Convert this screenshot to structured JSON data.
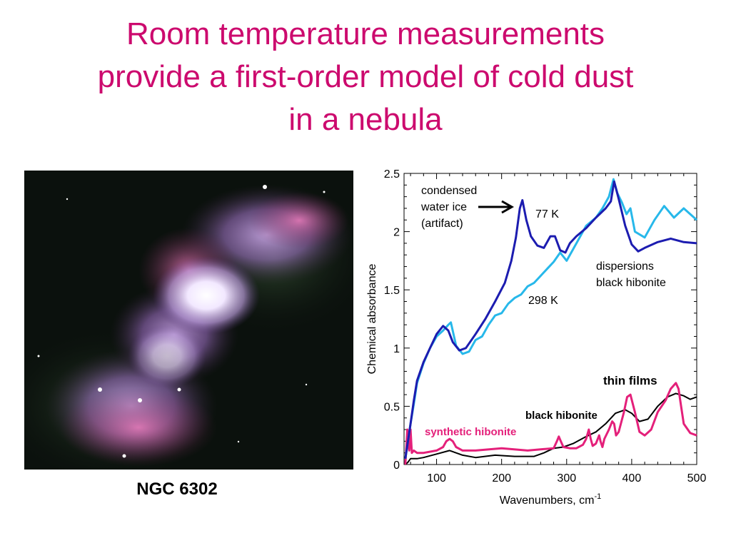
{
  "title": {
    "lines": [
      "Room temperature measurements",
      "provide a first-order model of cold dust",
      "in a nebula"
    ]
  },
  "image": {
    "caption": "NGC 6302"
  },
  "colors": {
    "title": "#cc0a6e",
    "k77": "#1c1cb0",
    "k298": "#27b8ea",
    "synthetic": "#e4207a",
    "black": "#000000"
  },
  "chart_data": {
    "type": "line",
    "xlabel": "Wavenumbers, cm",
    "xlabel_sup": "-1",
    "ylabel": "Chemical absorbance",
    "xlim": [
      50,
      500
    ],
    "ylim": [
      0,
      2.5
    ],
    "xticks": [
      100,
      200,
      300,
      400,
      500
    ],
    "yticks": [
      0,
      0.5,
      1,
      1.5,
      2,
      2.5
    ],
    "grid": false,
    "series": [
      {
        "name": "77 K",
        "color": "#1c1cb0",
        "x": [
          52,
          56,
          60,
          65,
          70,
          80,
          90,
          100,
          110,
          118,
          125,
          135,
          145,
          160,
          175,
          190,
          205,
          215,
          222,
          228,
          232,
          238,
          245,
          255,
          265,
          275,
          282,
          290,
          298,
          305,
          315,
          330,
          345,
          360,
          368,
          373,
          380,
          390,
          400,
          410,
          420,
          440,
          460,
          480,
          500
        ],
        "y": [
          0.05,
          0.2,
          0.35,
          0.55,
          0.72,
          0.88,
          1.0,
          1.12,
          1.19,
          1.15,
          1.05,
          0.98,
          1.0,
          1.12,
          1.25,
          1.4,
          1.56,
          1.75,
          1.95,
          2.2,
          2.27,
          2.1,
          1.96,
          1.88,
          1.86,
          1.96,
          1.96,
          1.84,
          1.82,
          1.9,
          1.96,
          2.03,
          2.12,
          2.2,
          2.26,
          2.43,
          2.28,
          2.05,
          1.89,
          1.83,
          1.86,
          1.91,
          1.94,
          1.91,
          1.9
        ]
      },
      {
        "name": "298 K",
        "color": "#27b8ea",
        "x": [
          52,
          56,
          60,
          65,
          70,
          80,
          90,
          100,
          110,
          118,
          122,
          130,
          140,
          150,
          160,
          170,
          180,
          190,
          200,
          210,
          220,
          230,
          240,
          250,
          260,
          270,
          280,
          290,
          300,
          310,
          320,
          330,
          345,
          355,
          365,
          372,
          378,
          385,
          392,
          398,
          405,
          420,
          435,
          450,
          465,
          480,
          500
        ],
        "y": [
          0.05,
          0.2,
          0.35,
          0.52,
          0.7,
          0.87,
          1.0,
          1.1,
          1.15,
          1.2,
          1.22,
          1.02,
          0.95,
          0.97,
          1.07,
          1.1,
          1.2,
          1.28,
          1.3,
          1.38,
          1.43,
          1.46,
          1.53,
          1.56,
          1.62,
          1.68,
          1.74,
          1.82,
          1.75,
          1.85,
          1.95,
          2.05,
          2.12,
          2.2,
          2.3,
          2.45,
          2.33,
          2.25,
          2.15,
          2.2,
          2.0,
          1.95,
          2.1,
          2.22,
          2.12,
          2.2,
          2.1
        ]
      },
      {
        "name": "synthetic hibonite",
        "color": "#e4207a",
        "x": [
          52,
          55,
          58,
          60,
          62,
          65,
          70,
          80,
          100,
          110,
          115,
          120,
          125,
          130,
          140,
          160,
          200,
          240,
          260,
          280,
          285,
          288,
          291,
          295,
          305,
          315,
          325,
          330,
          334,
          337,
          340,
          345,
          350,
          352,
          355,
          358,
          365,
          370,
          373,
          376,
          380,
          388,
          393,
          398,
          405,
          412,
          420,
          430,
          440,
          452,
          460,
          468,
          472,
          476,
          480,
          490,
          500
        ],
        "y": [
          0.0,
          0.3,
          0.12,
          0.3,
          0.1,
          0.12,
          0.1,
          0.1,
          0.12,
          0.15,
          0.2,
          0.22,
          0.2,
          0.15,
          0.12,
          0.12,
          0.14,
          0.12,
          0.13,
          0.14,
          0.2,
          0.24,
          0.2,
          0.15,
          0.14,
          0.14,
          0.17,
          0.22,
          0.3,
          0.22,
          0.16,
          0.18,
          0.25,
          0.2,
          0.15,
          0.22,
          0.3,
          0.37,
          0.35,
          0.25,
          0.28,
          0.45,
          0.58,
          0.6,
          0.45,
          0.28,
          0.25,
          0.3,
          0.45,
          0.55,
          0.65,
          0.7,
          0.65,
          0.5,
          0.35,
          0.27,
          0.25
        ]
      },
      {
        "name": "black hibonite",
        "color": "#000000",
        "x": [
          52,
          56,
          60,
          70,
          80,
          100,
          120,
          140,
          160,
          190,
          220,
          250,
          265,
          280,
          295,
          310,
          330,
          345,
          360,
          375,
          390,
          400,
          412,
          425,
          440,
          455,
          468,
          480,
          490,
          500
        ],
        "y": [
          0.0,
          0.02,
          0.05,
          0.05,
          0.06,
          0.09,
          0.12,
          0.08,
          0.06,
          0.08,
          0.07,
          0.07,
          0.1,
          0.14,
          0.15,
          0.18,
          0.24,
          0.28,
          0.35,
          0.44,
          0.47,
          0.44,
          0.37,
          0.39,
          0.5,
          0.58,
          0.61,
          0.59,
          0.56,
          0.58
        ]
      }
    ],
    "annotations": {
      "condensed": [
        "condensed",
        "water ice",
        "(artifact)"
      ],
      "k77": "77 K",
      "k298": "298 K",
      "dispersions": [
        "dispersions",
        "black hibonite"
      ],
      "thin_films": "thin films",
      "black_hibonite": "black hibonite",
      "synthetic_hibonite": "synthetic hibonite"
    }
  }
}
